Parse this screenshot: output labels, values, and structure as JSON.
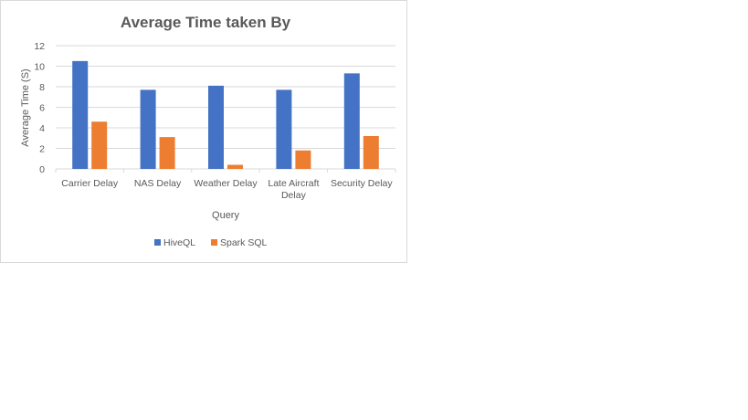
{
  "chart_data": {
    "type": "bar",
    "title": "Average Time taken By",
    "xlabel": "Query",
    "ylabel": "Average Time (S)",
    "ylim": [
      0,
      12
    ],
    "yticks": [
      0,
      2,
      4,
      6,
      8,
      10,
      12
    ],
    "grid": true,
    "legend_position": "bottom",
    "categories": [
      [
        "Carrier Delay"
      ],
      [
        "NAS Delay"
      ],
      [
        "Weather Delay"
      ],
      [
        "Late Aircraft",
        "Delay"
      ],
      [
        "Security Delay"
      ]
    ],
    "series": [
      {
        "name": "HiveQL",
        "color": "#4472C4",
        "values": [
          10.5,
          7.7,
          8.1,
          7.7,
          9.3
        ]
      },
      {
        "name": "Spark SQL",
        "color": "#ED7D31",
        "values": [
          4.6,
          3.1,
          0.4,
          1.8,
          3.2
        ]
      }
    ]
  }
}
